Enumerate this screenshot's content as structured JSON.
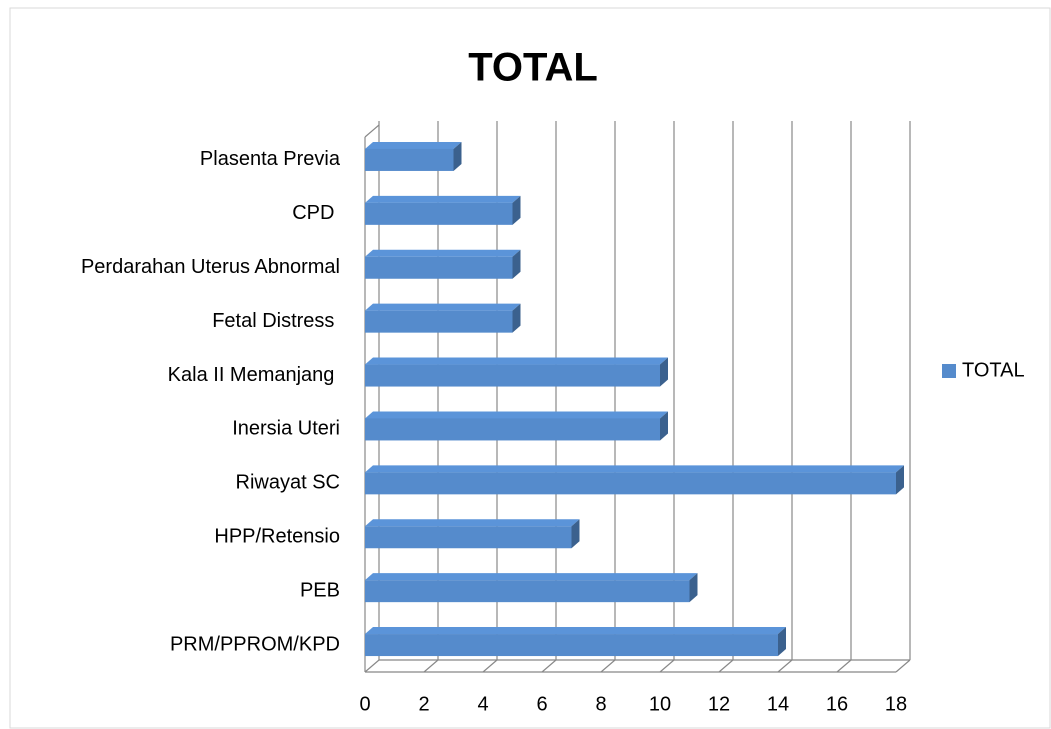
{
  "chart_data": {
    "type": "bar3d",
    "orientation": "horizontal",
    "title": "TOTAL",
    "categories": [
      "PRM/PPROM/KPD",
      "PEB",
      "HPP/Retensio",
      "Riwayat SC",
      "Inersia Uteri",
      "Kala II Memanjang ",
      "Fetal Distress ",
      "Perdarahan Uterus Abnormal",
      "CPD ",
      "Plasenta Previa"
    ],
    "series": [
      {
        "name": "TOTAL",
        "color": "#4f81bd",
        "values": [
          14,
          11,
          7,
          18,
          10,
          10,
          5,
          5,
          5,
          3
        ]
      }
    ],
    "xlim": [
      0,
      18
    ],
    "xticks": [
      0,
      2,
      4,
      6,
      8,
      10,
      12,
      14,
      16,
      18
    ],
    "grid": true,
    "legend": "right"
  }
}
